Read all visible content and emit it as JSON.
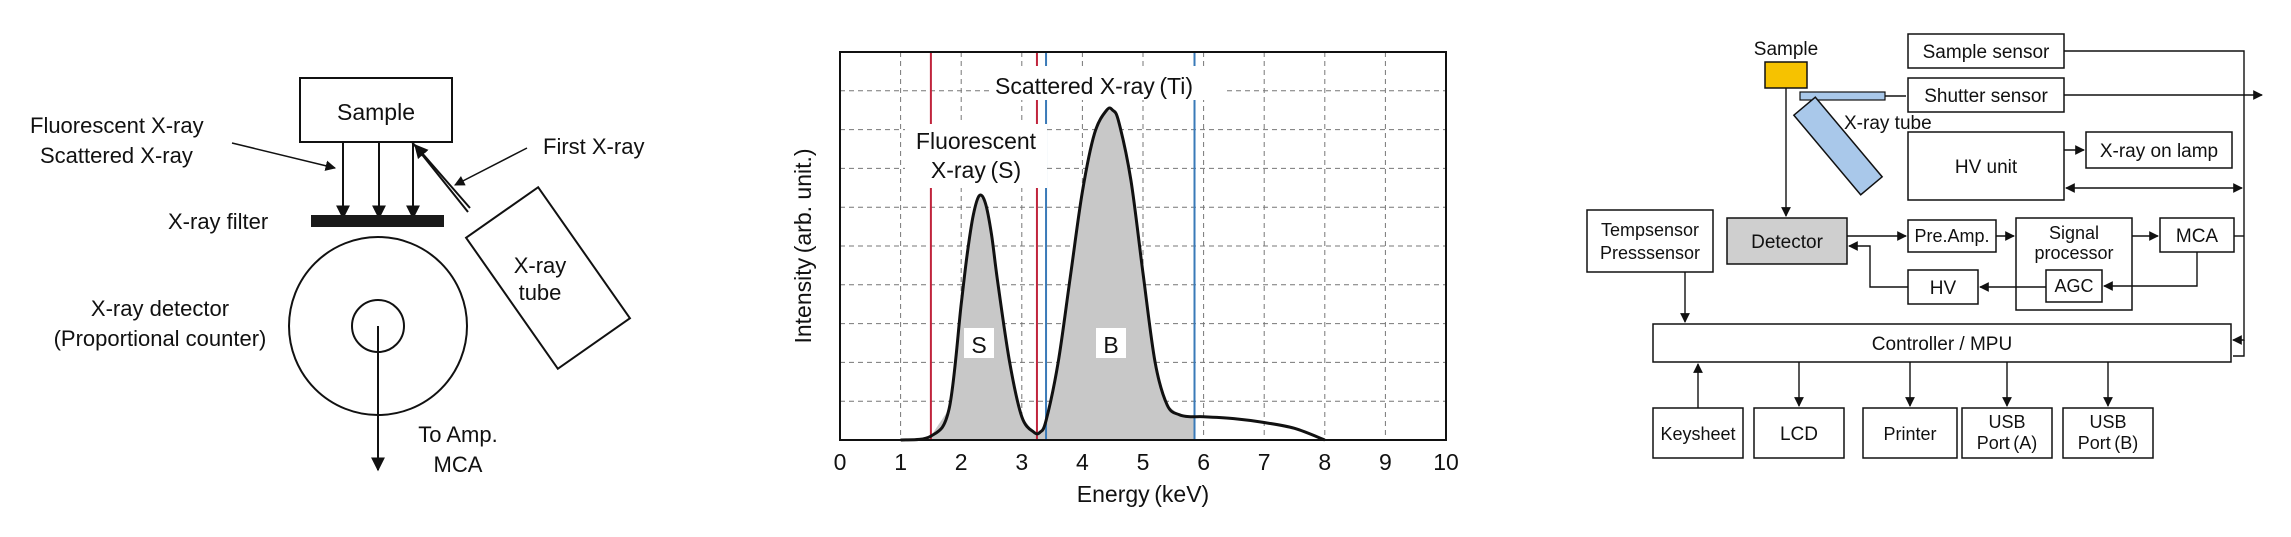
{
  "left_panel": {
    "sample_label": "Sample",
    "fluorescent_xray": "Fluorescent X-ray",
    "scattered_xray": "Scattered X-ray",
    "first_xray": "First X-ray",
    "xray_filter": "X-ray filter",
    "xray_tube_line1": "X-ray",
    "xray_tube_line2": "tube",
    "detector_line1": "X-ray detector",
    "detector_line2": "(Proportional counter)",
    "to_amp_line1": "To Amp.",
    "to_amp_line2": "MCA"
  },
  "chart_data": {
    "type": "area",
    "xlabel": "Energy (keV)",
    "ylabel": "Intensity (arb. unit.)",
    "xlim": [
      0,
      10
    ],
    "x_ticks": [
      "0",
      "1",
      "2",
      "3",
      "4",
      "5",
      "6",
      "7",
      "8",
      "9",
      "10"
    ],
    "grid": true,
    "peaks": [
      {
        "label": "S",
        "center": 2.3,
        "height": 0.63
      },
      {
        "label": "B",
        "center": 4.5,
        "height": 0.85
      }
    ],
    "spectrum": {
      "x": [
        1.0,
        1.5,
        1.8,
        2.0,
        2.1,
        2.2,
        2.3,
        2.4,
        2.5,
        2.6,
        2.8,
        3.0,
        3.2,
        3.3,
        3.4,
        3.6,
        3.8,
        4.0,
        4.2,
        4.4,
        4.5,
        4.6,
        4.8,
        5.0,
        5.2,
        5.4,
        5.6,
        5.8,
        6.0,
        6.5,
        7.0,
        7.5,
        8.0
      ],
      "y": [
        0.0,
        0.01,
        0.08,
        0.35,
        0.48,
        0.58,
        0.63,
        0.61,
        0.53,
        0.41,
        0.2,
        0.06,
        0.02,
        0.02,
        0.05,
        0.2,
        0.42,
        0.64,
        0.79,
        0.85,
        0.85,
        0.82,
        0.67,
        0.43,
        0.2,
        0.09,
        0.065,
        0.06,
        0.06,
        0.055,
        0.045,
        0.03,
        0.0
      ]
    },
    "red_lines": [
      1.5,
      3.25
    ],
    "blue_lines": [
      3.4,
      5.85
    ],
    "annotations": {
      "scattered": "Scattered X-ray (Ti)",
      "fluorescent_line1": "Fluorescent",
      "fluorescent_line2": "X-ray (S)"
    },
    "colors": {
      "red_line": "#c0243c",
      "blue_line": "#3a7ab8",
      "fill": "#c8c8c8"
    }
  },
  "block_diagram": {
    "sample": "Sample",
    "xray_tube": "X-ray tube",
    "sample_sensor": "Sample sensor",
    "shutter_sensor": "Shutter sensor",
    "hv_unit": "HV unit",
    "xray_on_lamp": "X-ray on lamp",
    "tempsensor": "Tempsensor",
    "presssensor": "Presssensor",
    "detector": "Detector",
    "pre_amp": "Pre.Amp.",
    "signal": "Signal",
    "processor": "processor",
    "mca": "MCA",
    "hv": "HV",
    "agc": "AGC",
    "controller": "Controller / MPU",
    "keysheet": "Keysheet",
    "lcd": "LCD",
    "printer": "Printer",
    "usb": "USB",
    "port_a": "Port (A)",
    "port_b": "Port (B)",
    "colors": {
      "sample": "#f6c200",
      "tube": "#a9c8ea",
      "detector": "#cfcfcf"
    }
  }
}
